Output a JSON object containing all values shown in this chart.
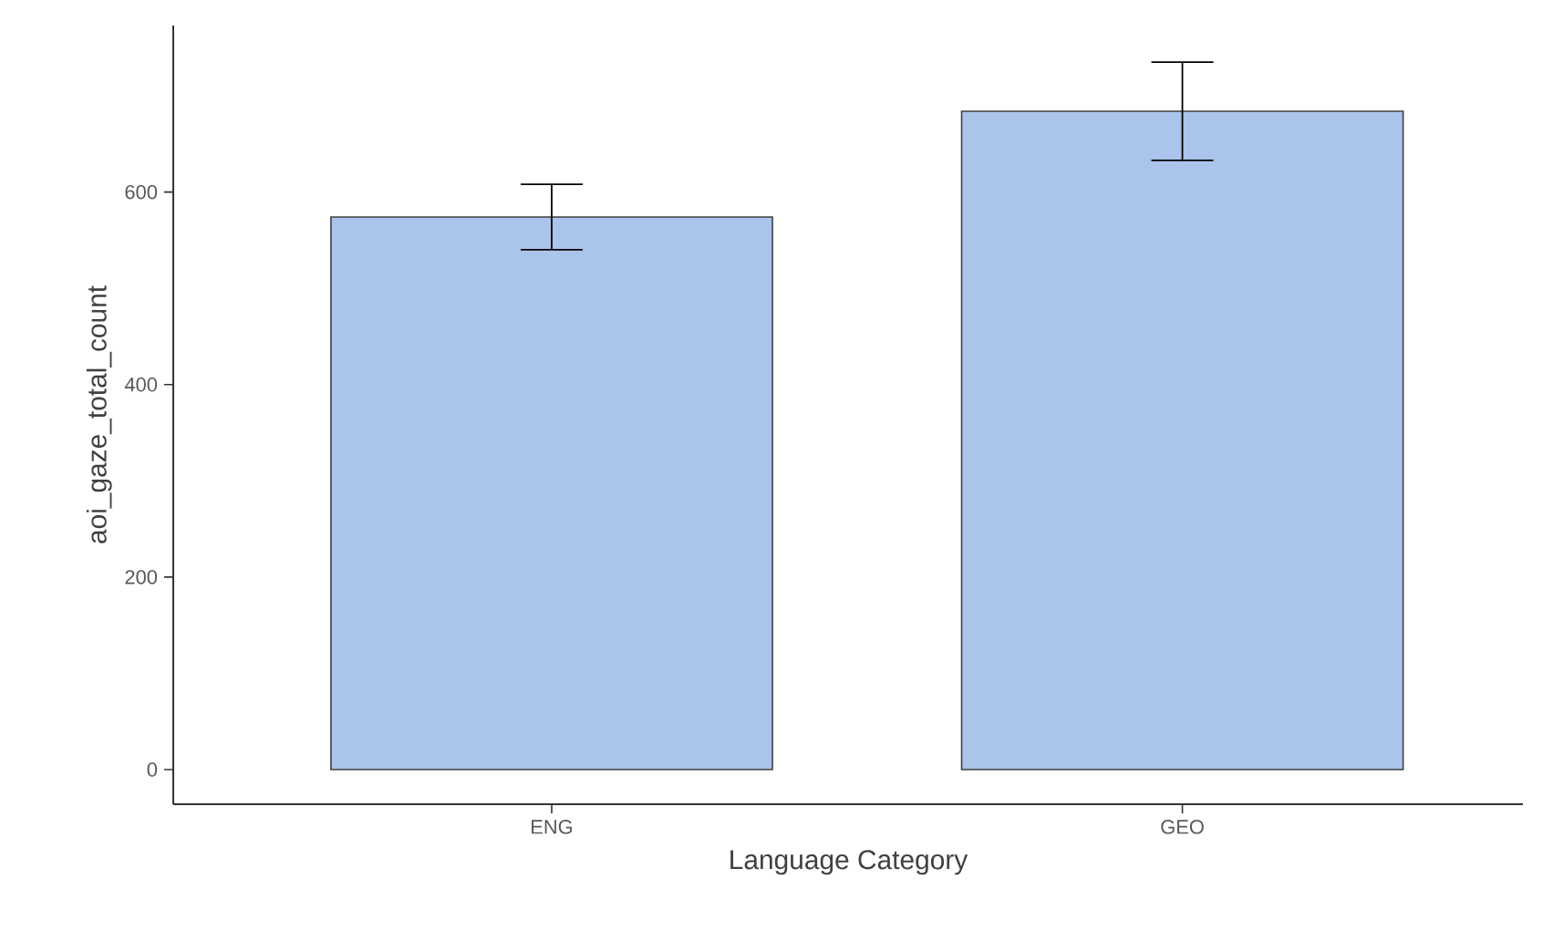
{
  "chart_data": {
    "type": "bar",
    "xlabel": "Language Category",
    "ylabel": "aoi_gaze_total_count",
    "categories": [
      "ENG",
      "GEO"
    ],
    "values": [
      574,
      684
    ],
    "errors": [
      34,
      51
    ],
    "color": "#aac4ec",
    "ylim": [
      -36,
      773
    ],
    "yticks": [
      0,
      200,
      400,
      600
    ],
    "grid": false
  }
}
